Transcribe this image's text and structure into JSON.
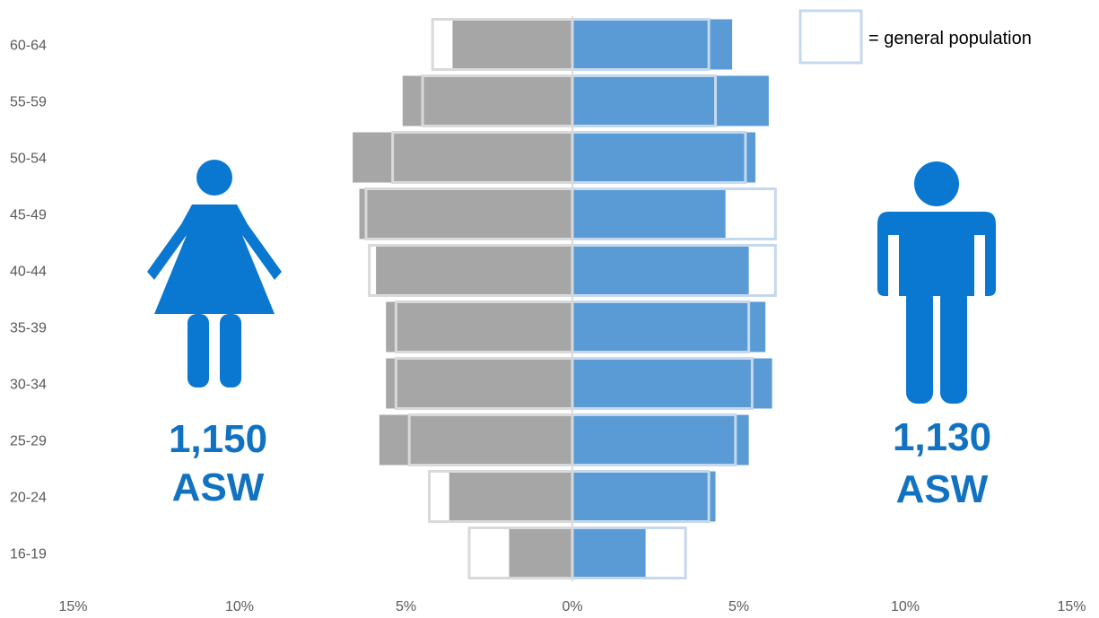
{
  "chart_data": {
    "type": "bar",
    "orientation": "horizontal-population-pyramid",
    "categories": [
      "16-19",
      "20-24",
      "25-29",
      "30-34",
      "35-39",
      "40-44",
      "45-49",
      "50-54",
      "55-59",
      "60-64"
    ],
    "x_ticks": [
      "15%",
      "10%",
      "5%",
      "0%",
      "5%",
      "10%",
      "15%"
    ],
    "xlim": [
      -15,
      15
    ],
    "series": [
      {
        "side": "left",
        "color": "#a6a6a6",
        "values": [
          1.9,
          3.7,
          5.8,
          5.6,
          5.6,
          5.9,
          6.4,
          6.6,
          5.1,
          3.6
        ]
      },
      {
        "side": "left",
        "kind": "outline",
        "color": "#d9d9d9",
        "values": [
          3.1,
          4.3,
          4.9,
          5.3,
          5.3,
          6.1,
          6.2,
          5.4,
          4.5,
          4.2
        ]
      },
      {
        "side": "right",
        "color": "#5b9bd5",
        "values": [
          2.2,
          4.3,
          5.3,
          6.0,
          5.8,
          5.3,
          4.6,
          5.5,
          5.9,
          4.8
        ]
      },
      {
        "side": "right",
        "kind": "outline",
        "color": "#c5d9ee",
        "values": [
          3.4,
          4.1,
          4.9,
          5.4,
          5.3,
          6.1,
          6.1,
          5.2,
          4.3,
          4.1
        ]
      }
    ],
    "legend": {
      "label": "= general population",
      "position": "top-right"
    },
    "annotations": {
      "left_count": "1,150",
      "left_unit": "ASW",
      "right_count": "1,130",
      "right_unit": "ASW"
    },
    "icons": {
      "left": "woman-icon",
      "right": "man-icon"
    },
    "colors": {
      "label_blue": "#1272c2",
      "icon_blue": "#0a78d0"
    }
  }
}
